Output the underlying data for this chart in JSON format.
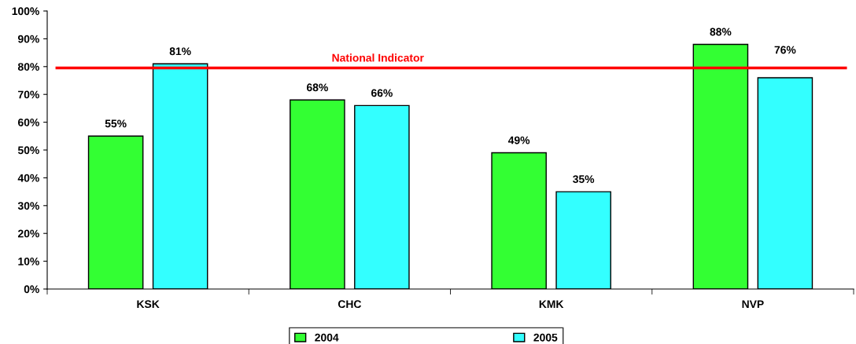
{
  "chart_data": {
    "type": "bar",
    "categories": [
      "KSK",
      "CHC",
      "KMK",
      "NVP"
    ],
    "series": [
      {
        "name": "2004",
        "color": "#33ff33",
        "values": [
          55,
          68,
          49,
          88
        ],
        "value_labels": [
          "55%",
          "68%",
          "49%",
          "88%"
        ]
      },
      {
        "name": "2005",
        "color": "#33ffff",
        "values": [
          81,
          66,
          35,
          76
        ],
        "value_labels": [
          "81%",
          "66%",
          "35%",
          "76%"
        ]
      }
    ],
    "ylim": [
      0,
      100
    ],
    "yticks": [
      {
        "value": 0,
        "label": "0%"
      },
      {
        "value": 10,
        "label": "10%"
      },
      {
        "value": 20,
        "label": "20%"
      },
      {
        "value": 30,
        "label": "30%"
      },
      {
        "value": 40,
        "label": "40%"
      },
      {
        "value": 50,
        "label": "50%"
      },
      {
        "value": 60,
        "label": "60%"
      },
      {
        "value": 70,
        "label": "70%"
      },
      {
        "value": 80,
        "label": "80%"
      },
      {
        "value": 90,
        "label": "90%"
      },
      {
        "value": 100,
        "label": "100%"
      }
    ],
    "ref_lines": [
      {
        "axis": "y",
        "value": 79.5,
        "label": "National Indicator",
        "color": "#ff0000",
        "line_style": "solid"
      }
    ],
    "grid": false,
    "legend": "bottom"
  }
}
